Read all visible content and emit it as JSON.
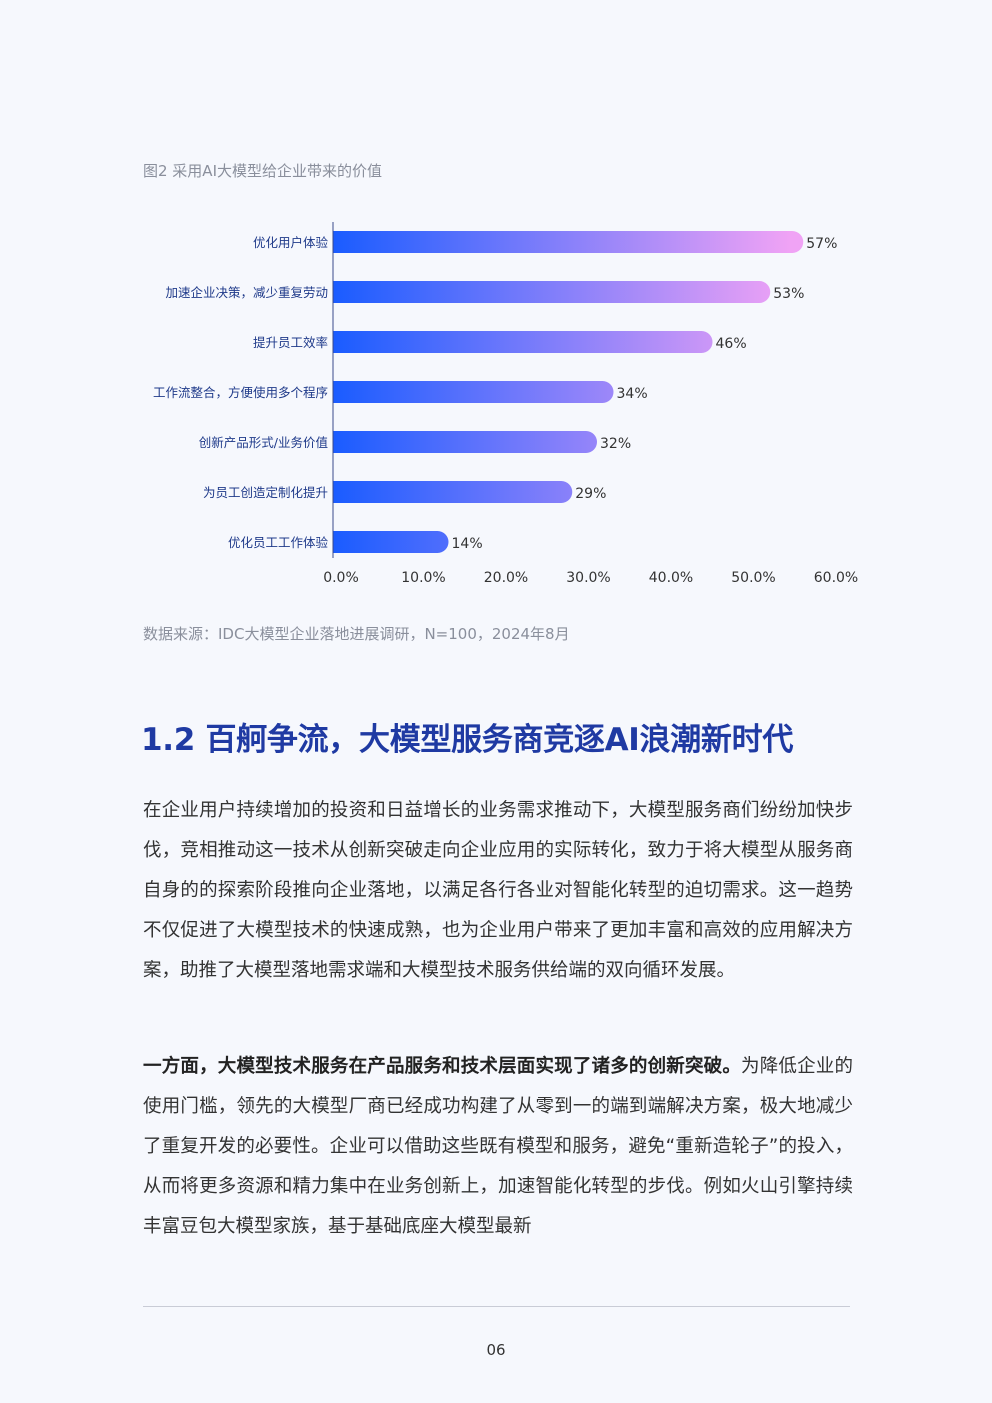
{
  "figure": {
    "caption": "图2  采用AI大模型给企业带来的价值",
    "source": "数据来源：IDC大模型企业落地进展调研，N=100，2024年8月"
  },
  "chart_data": {
    "type": "bar",
    "orientation": "horizontal",
    "categories": [
      "优化用户体验",
      "加速企业决策，减少重复劳动",
      "提升员工效率",
      "工作流整合，方便使用多个程序",
      "创新产品形式/业务价值",
      "为员工创造定制化提升",
      "优化员工工作体验"
    ],
    "values": [
      57,
      53,
      46,
      34,
      32,
      29,
      14
    ],
    "data_labels": [
      "57%",
      "53%",
      "46%",
      "34%",
      "32%",
      "29%",
      "14%"
    ],
    "xticks": [
      "0.0%",
      "10.0%",
      "20.0%",
      "30.0%",
      "40.0%",
      "50.0%",
      "60.0%"
    ],
    "xlim": [
      0,
      60
    ],
    "grid": false,
    "colors": {
      "gradient_start": "#1a5cff",
      "gradient_end": "#f0a3f5",
      "label": "#1f3a8a"
    }
  },
  "section": {
    "title": "1.2 百舸争流，大模型服务商竞逐AI浪潮新时代"
  },
  "paragraphs": {
    "p1": "在企业用户持续增加的投资和日益增长的业务需求推动下，大模型服务商们纷纷加快步伐，竞相推动这一技术从创新突破走向企业应用的实际转化，致力于将大模型从服务商自身的的探索阶段推向企业落地，以满足各行各业对智能化转型的迫切需求。这一趋势不仅促进了大模型技术的快速成熟，也为企业用户带来了更加丰富和高效的应用解决方案，助推了大模型落地需求端和大模型技术服务供给端的双向循环发展。",
    "p2_bold": "一方面，大模型技术服务在产品服务和技术层面实现了诸多的创新突破。",
    "p2_rest": "为降低企业的使用门槛，领先的大模型厂商已经成功构建了从零到一的端到端解决方案，极大地减少了重复开发的必要性。企业可以借助这些既有模型和服务，避免“重新造轮子”的投入，从而将更多资源和精力集中在业务创新上，加速智能化转型的步伐。例如火山引擎持续丰富豆包大模型家族，基于基础底座大模型最新"
  },
  "footer": {
    "page_number": "06"
  }
}
